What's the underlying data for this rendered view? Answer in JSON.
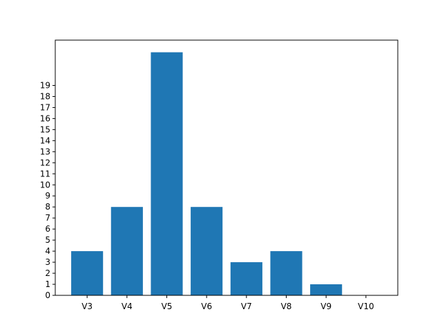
{
  "chart_data": {
    "type": "bar",
    "categories": [
      "V3",
      "V4",
      "V5",
      "V6",
      "V7",
      "V8",
      "V9",
      "V10"
    ],
    "values": [
      4,
      8,
      22,
      8,
      3,
      4,
      1,
      0
    ],
    "y_ticks": [
      0,
      1,
      2,
      3,
      4,
      5,
      6,
      7,
      8,
      9,
      10,
      11,
      12,
      13,
      14,
      15,
      16,
      17,
      18,
      19
    ],
    "ylim": [
      0,
      23.1
    ],
    "bar_color": "#1f77b4",
    "grid": false,
    "title": "",
    "xlabel": "",
    "ylabel": ""
  }
}
